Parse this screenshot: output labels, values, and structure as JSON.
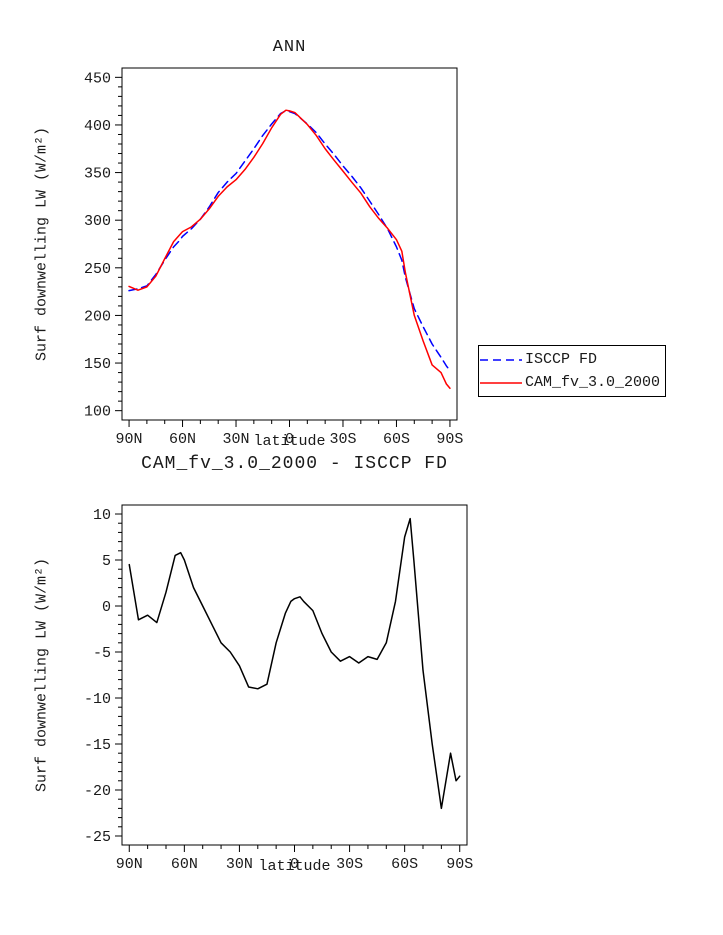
{
  "page": {
    "background": "#ffffff"
  },
  "chart_data": [
    {
      "type": "line",
      "title": "ANN",
      "xlabel": "latitude",
      "ylabel": "Surf downwelling LW (W/m²)",
      "ylim": [
        100,
        450
      ],
      "yticks": [
        100,
        150,
        200,
        250,
        300,
        350,
        400,
        450
      ],
      "yminor": 10,
      "xticks": [
        {
          "lat": 90,
          "label": "90N"
        },
        {
          "lat": 60,
          "label": "60N"
        },
        {
          "lat": 30,
          "label": "30N"
        },
        {
          "lat": 0,
          "label": "0"
        },
        {
          "lat": -30,
          "label": "30S"
        },
        {
          "lat": -60,
          "label": "60S"
        },
        {
          "lat": -90,
          "label": "90S"
        }
      ],
      "x_lat": [
        90,
        85,
        80,
        75,
        70,
        65,
        62,
        60,
        55,
        50,
        45,
        40,
        35,
        30,
        25,
        20,
        15,
        10,
        5,
        2,
        0,
        -3,
        -5,
        -10,
        -15,
        -20,
        -25,
        -30,
        -35,
        -40,
        -45,
        -50,
        -55,
        -60,
        -63,
        -65,
        -70,
        -75,
        -80,
        -85,
        -88,
        -90
      ],
      "series": [
        {
          "name": "ISCCP FD",
          "color": "#0000ff",
          "style": "dashed",
          "values": [
            226,
            228,
            231,
            243,
            258,
            272,
            278,
            283,
            291,
            301,
            314,
            329,
            340,
            349,
            362,
            375,
            389,
            401,
            412,
            415,
            414,
            412,
            409,
            401,
            392,
            380,
            369,
            357,
            346,
            334,
            320,
            306,
            291,
            272,
            258,
            240,
            207,
            188,
            170,
            156,
            147,
            142
          ]
        },
        {
          "name": "CAM_fv_3.0_2000",
          "color": "#ff0000",
          "style": "solid",
          "values": [
            230.5,
            226.5,
            230,
            241.2,
            259.5,
            277.5,
            283.8,
            288,
            293,
            301,
            312,
            325,
            335,
            342.5,
            353.2,
            366,
            380.5,
            397,
            411.2,
            415.5,
            414.8,
            413,
            409.5,
            400.5,
            389,
            375,
            363,
            351.5,
            339.8,
            328.5,
            314.2,
            302,
            291.5,
            279.5,
            267.5,
            245,
            200,
            173,
            148,
            140,
            128,
            123.5
          ]
        }
      ],
      "legend": {
        "position": "right",
        "entries": [
          "ISCCP FD",
          "CAM_fv_3.0_2000"
        ]
      }
    },
    {
      "type": "line",
      "title": "CAM_fv_3.0_2000 - ISCCP FD",
      "xlabel": "latitude",
      "ylabel": "Surf downwelling LW (W/m²)",
      "ylim": [
        -25,
        10
      ],
      "yticks": [
        -25,
        -20,
        -15,
        -10,
        -5,
        0,
        5,
        10
      ],
      "yminor": 1,
      "xticks": [
        {
          "lat": 90,
          "label": "90N"
        },
        {
          "lat": 60,
          "label": "60N"
        },
        {
          "lat": 30,
          "label": "30N"
        },
        {
          "lat": 0,
          "label": "0"
        },
        {
          "lat": -30,
          "label": "30S"
        },
        {
          "lat": -60,
          "label": "60S"
        },
        {
          "lat": -90,
          "label": "90S"
        }
      ],
      "x_lat": [
        90,
        85,
        80,
        75,
        70,
        65,
        62,
        60,
        55,
        50,
        45,
        40,
        35,
        30,
        25,
        20,
        15,
        10,
        5,
        2,
        0,
        -3,
        -5,
        -10,
        -15,
        -20,
        -25,
        -30,
        -35,
        -40,
        -45,
        -50,
        -55,
        -60,
        -63,
        -65,
        -70,
        -75,
        -80,
        -85,
        -88,
        -90
      ],
      "series": [
        {
          "name": "CAM_fv_3.0_2000 - ISCCP FD",
          "color": "#000000",
          "style": "solid",
          "values": [
            4.5,
            -1.5,
            -1,
            -1.8,
            1.5,
            5.5,
            5.8,
            5,
            2,
            0,
            -2,
            -4,
            -5,
            -6.5,
            -8.8,
            -9,
            -8.5,
            -4,
            -0.8,
            0.5,
            0.8,
            1,
            0.5,
            -0.5,
            -3,
            -5,
            -6,
            -5.5,
            -6.2,
            -5.5,
            -5.8,
            -4,
            0.5,
            7.5,
            9.5,
            5,
            -7,
            -15,
            -22,
            -16,
            -19,
            -18.5
          ]
        }
      ]
    }
  ]
}
